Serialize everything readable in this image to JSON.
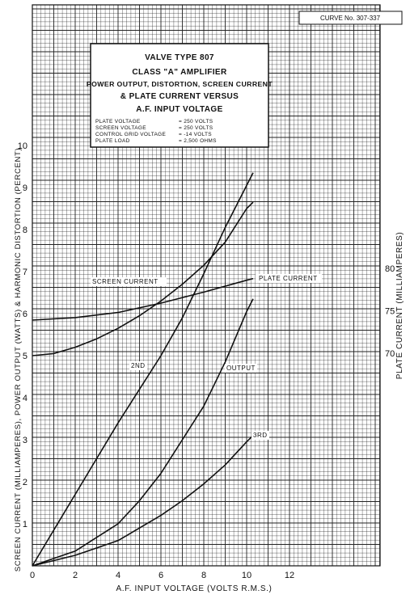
{
  "chart_data": {
    "type": "line",
    "curve_id": "CURVE No. 307-337",
    "title_lines": [
      "VALVE TYPE 807",
      "CLASS \"A\" AMPLIFIER",
      "POWER OUTPUT, DISTORTION, SCREEN CURRENT",
      "& PLATE CURRENT VERSUS",
      "A.F. INPUT VOLTAGE"
    ],
    "conditions": [
      {
        "label": "PLATE VOLTAGE",
        "value": "= 250 VOLTS"
      },
      {
        "label": "SCREEN VOLTAGE",
        "value": "= 250 VOLTS"
      },
      {
        "label": "CONTROL GRID VOLTAGE",
        "value": "= -14 VOLTS"
      },
      {
        "label": "PLATE LOAD",
        "value": "= 2,500 OHMS"
      }
    ],
    "xlabel": "A.F. INPUT VOLTAGE (VOLTS R.M.S.)",
    "ylabel_left": "SCREEN CURRENT (MILLIAMPERES), POWER OUTPUT (WATTS) & HARMONIC DISTORTION (PERCENT)",
    "ylabel_right": "PLATE CURRENT (MILLIAMPERES)",
    "xlim": [
      0,
      15
    ],
    "ylim_left": [
      0,
      10
    ],
    "x_ticks": [
      "0",
      "2",
      "4",
      "6",
      "8",
      "10",
      "12"
    ],
    "y_ticks_left": [
      "1",
      "2",
      "3",
      "4",
      "5",
      "6",
      "7",
      "8",
      "9",
      "10"
    ],
    "y_ticks_right": [
      "70",
      "75",
      "80"
    ],
    "grid": true,
    "series": [
      {
        "name": "SCREEN CURRENT",
        "axis": "left",
        "x": [
          0,
          1,
          2,
          3,
          4,
          5,
          6,
          7,
          8,
          9,
          10,
          10.3
        ],
        "y": [
          5.0,
          5.05,
          5.2,
          5.4,
          5.65,
          5.95,
          6.3,
          6.7,
          7.15,
          7.7,
          8.5,
          8.65
        ]
      },
      {
        "name": "PLATE CURRENT",
        "axis": "right",
        "x": [
          0,
          2,
          4,
          6,
          8,
          10,
          10.3
        ],
        "y": [
          73.9,
          74.2,
          74.8,
          75.9,
          77.2,
          78.6,
          78.8
        ]
      },
      {
        "name": "2ND",
        "axis": "left",
        "x": [
          0,
          1,
          2,
          3,
          4,
          5,
          6,
          7,
          8,
          9,
          10,
          10.3
        ],
        "y": [
          0,
          0.85,
          1.7,
          2.55,
          3.4,
          4.2,
          5.0,
          5.9,
          6.95,
          8.05,
          9.05,
          9.35
        ]
      },
      {
        "name": "OUTPUT",
        "axis": "left",
        "x": [
          0,
          2,
          4,
          5,
          6,
          7,
          8,
          9,
          10,
          10.3
        ],
        "y": [
          0,
          0.35,
          1.0,
          1.55,
          2.2,
          3.0,
          3.8,
          4.85,
          6.05,
          6.35
        ]
      },
      {
        "name": "3RD",
        "axis": "left",
        "x": [
          0,
          2,
          4,
          6,
          7,
          8,
          9,
          10,
          10.3
        ],
        "y": [
          0,
          0.25,
          0.6,
          1.2,
          1.55,
          1.95,
          2.4,
          2.95,
          3.1
        ]
      }
    ]
  }
}
